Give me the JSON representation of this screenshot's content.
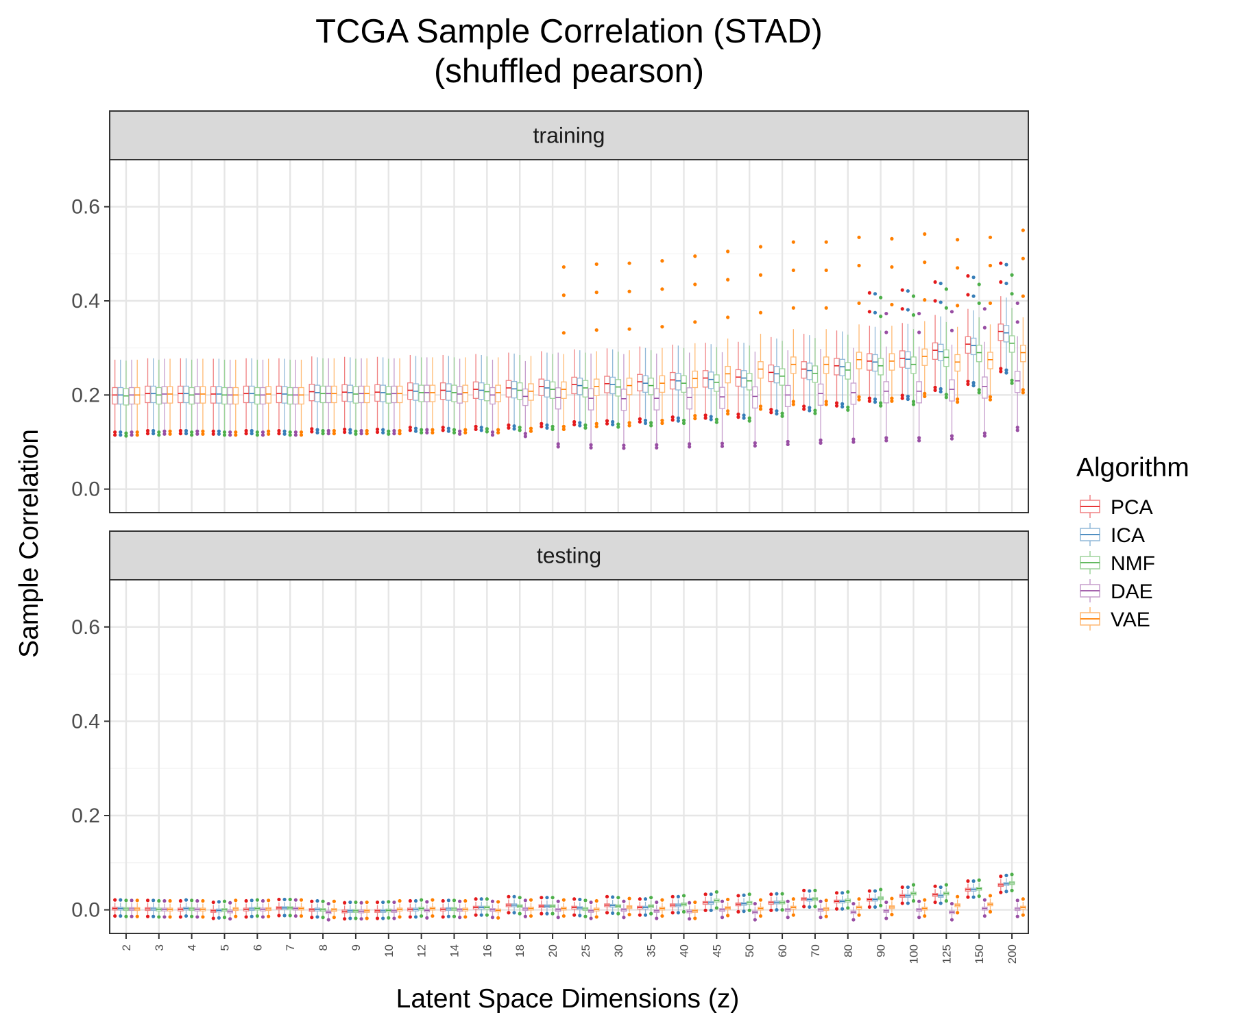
{
  "chart_data": {
    "type": "box",
    "title": "TCGA Sample Correlation (STAD)",
    "subtitle": "(shuffled pearson)",
    "xlabel": "Latent Space Dimensions (z)",
    "ylabel": "Sample Correlation",
    "ylim": [
      -0.05,
      0.7
    ],
    "yticks": [
      0.0,
      0.2,
      0.4,
      0.6
    ],
    "grid": true,
    "legend": {
      "title": "Algorithm",
      "placement": "right",
      "entries": [
        "PCA",
        "ICA",
        "NMF",
        "DAE",
        "VAE"
      ]
    },
    "colors": {
      "PCA": "#e41a1c",
      "ICA": "#377eb8",
      "NMF": "#4daf4a",
      "DAE": "#984ea3",
      "VAE": "#ff7f00"
    },
    "categories": [
      "2",
      "3",
      "4",
      "5",
      "6",
      "7",
      "8",
      "9",
      "10",
      "12",
      "14",
      "16",
      "18",
      "20",
      "25",
      "30",
      "35",
      "40",
      "45",
      "50",
      "60",
      "70",
      "80",
      "90",
      "100",
      "125",
      "150",
      "200"
    ],
    "series": [
      "PCA",
      "ICA",
      "NMF",
      "DAE",
      "VAE"
    ],
    "panels": [
      {
        "name": "training",
        "medians": {
          "PCA": [
            0.2,
            0.203,
            0.203,
            0.202,
            0.203,
            0.203,
            0.207,
            0.206,
            0.206,
            0.21,
            0.21,
            0.212,
            0.215,
            0.218,
            0.222,
            0.224,
            0.228,
            0.232,
            0.236,
            0.238,
            0.248,
            0.255,
            0.262,
            0.272,
            0.278,
            0.295,
            0.308,
            0.335
          ],
          "ICA": [
            0.2,
            0.203,
            0.203,
            0.202,
            0.203,
            0.202,
            0.205,
            0.205,
            0.205,
            0.208,
            0.208,
            0.21,
            0.213,
            0.215,
            0.22,
            0.222,
            0.225,
            0.23,
            0.233,
            0.236,
            0.245,
            0.252,
            0.26,
            0.27,
            0.276,
            0.292,
            0.305,
            0.332
          ],
          "NMF": [
            0.198,
            0.2,
            0.2,
            0.2,
            0.2,
            0.2,
            0.203,
            0.202,
            0.202,
            0.205,
            0.205,
            0.207,
            0.21,
            0.212,
            0.215,
            0.217,
            0.22,
            0.225,
            0.227,
            0.23,
            0.24,
            0.246,
            0.253,
            0.262,
            0.265,
            0.28,
            0.29,
            0.31
          ],
          "DAE": [
            0.2,
            0.202,
            0.202,
            0.2,
            0.2,
            0.2,
            0.203,
            0.203,
            0.203,
            0.205,
            0.202,
            0.2,
            0.197,
            0.195,
            0.193,
            0.192,
            0.193,
            0.195,
            0.196,
            0.197,
            0.2,
            0.203,
            0.205,
            0.208,
            0.208,
            0.212,
            0.218,
            0.23
          ],
          "VAE": [
            0.2,
            0.202,
            0.202,
            0.2,
            0.202,
            0.2,
            0.203,
            0.203,
            0.203,
            0.205,
            0.205,
            0.205,
            0.208,
            0.212,
            0.218,
            0.22,
            0.225,
            0.235,
            0.245,
            0.255,
            0.265,
            0.265,
            0.275,
            0.272,
            0.282,
            0.27,
            0.275,
            0.29
          ]
        }
      },
      {
        "name": "testing",
        "medians": {
          "PCA": [
            0.003,
            0.002,
            0.001,
            -0.002,
            0.001,
            0.004,
            0.0,
            -0.003,
            -0.002,
            0.001,
            0.001,
            0.005,
            0.01,
            0.008,
            0.005,
            0.01,
            0.005,
            0.01,
            0.015,
            0.012,
            0.015,
            0.023,
            0.018,
            0.022,
            0.03,
            0.032,
            0.043,
            0.053
          ],
          "ICA": [
            0.003,
            0.002,
            0.003,
            -0.001,
            0.002,
            0.004,
            0.001,
            -0.002,
            -0.002,
            0.001,
            0.002,
            0.005,
            0.01,
            0.008,
            0.004,
            0.009,
            0.005,
            0.01,
            0.015,
            0.013,
            0.016,
            0.022,
            0.018,
            0.022,
            0.03,
            0.03,
            0.043,
            0.055
          ],
          "NMF": [
            0.002,
            0.001,
            0.002,
            0.0,
            0.003,
            0.004,
            0.0,
            -0.002,
            -0.001,
            0.003,
            0.002,
            0.005,
            0.008,
            0.008,
            0.002,
            0.008,
            0.008,
            0.012,
            0.02,
            0.015,
            0.016,
            0.023,
            0.02,
            0.025,
            0.035,
            0.035,
            0.045,
            0.057
          ],
          "DAE": [
            0.002,
            0.001,
            0.001,
            -0.003,
            0.001,
            0.003,
            -0.005,
            -0.003,
            -0.002,
            -0.001,
            0.0,
            0.0,
            0.002,
            0.0,
            -0.002,
            0.0,
            -0.002,
            -0.003,
            0.0,
            -0.005,
            0.0,
            0.0,
            -0.005,
            -0.002,
            0.0,
            -0.005,
            0.003,
            0.002
          ],
          "VAE": [
            0.002,
            0.001,
            0.001,
            0.002,
            0.002,
            0.003,
            0.0,
            -0.002,
            0.001,
            0.003,
            0.001,
            -0.001,
            0.003,
            0.003,
            0.001,
            0.006,
            0.003,
            -0.002,
            0.004,
            0.003,
            0.005,
            0.002,
            0.005,
            0.006,
            0.003,
            0.01,
            0.012,
            0.005
          ]
        }
      }
    ]
  }
}
